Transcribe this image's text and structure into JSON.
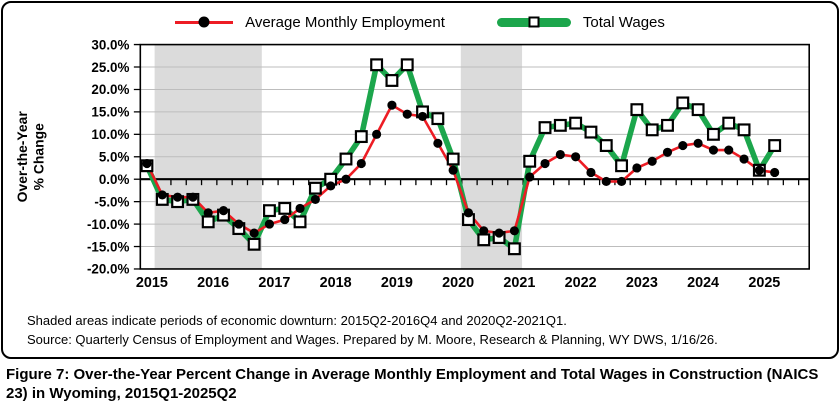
{
  "legend": {
    "employment_label": "Average Monthly Employment",
    "wages_label": "Total Wages"
  },
  "y_axis": {
    "title_line1": "Over-the-Year",
    "title_line2": "% Change",
    "tick_labels": [
      "30.0%",
      "25.0%",
      "20.0%",
      "15.0%",
      "10.0%",
      "5.0%",
      "0.0%",
      "-5.0%",
      "-10.0%",
      "-15.0%",
      "-20.0%"
    ],
    "tick_values": [
      30,
      25,
      20,
      15,
      10,
      5,
      0,
      -5,
      -10,
      -15,
      -20
    ]
  },
  "x_axis": {
    "year_labels": [
      "2015",
      "2016",
      "2017",
      "2018",
      "2019",
      "2020",
      "2021",
      "2022",
      "2023",
      "2024",
      "2025"
    ]
  },
  "notes": {
    "line1": "Shaded areas indicate periods of economic downturn: 2015Q2-2016Q4 and 2020Q2-2021Q1.",
    "line2": "Source: Quarterly Census of Employment and Wages. Prepared by M. Moore, Research & Planning, WY DWS, 1/16/26."
  },
  "caption": "Figure 7: Over-the-Year Percent Change in Average Monthly Employment and Total Wages in Construction (NAICS 23) in Wyoming, 2015Q1-2025Q2",
  "colors": {
    "employment_line": "#ED1C24",
    "employment_marker": "#000000",
    "wages_line": "#1CA64C",
    "wages_marker_fill": "#FFFFFF",
    "wages_marker_border": "#000000",
    "shading": "#DBDBDB",
    "gridline": "#BDBDBD",
    "axis": "#000000"
  },
  "chart_data": {
    "type": "line",
    "title": "",
    "xlabel": "",
    "ylabel": "Over-the-Year % Change",
    "ylim": [
      -20,
      30
    ],
    "ytick_step": 5,
    "grid": true,
    "legend_position": "top",
    "categories": [
      "2015Q1",
      "2015Q2",
      "2015Q3",
      "2015Q4",
      "2016Q1",
      "2016Q2",
      "2016Q3",
      "2016Q4",
      "2017Q1",
      "2017Q2",
      "2017Q3",
      "2017Q4",
      "2018Q1",
      "2018Q2",
      "2018Q3",
      "2018Q4",
      "2019Q1",
      "2019Q2",
      "2019Q3",
      "2019Q4",
      "2020Q1",
      "2020Q2",
      "2020Q3",
      "2020Q4",
      "2021Q1",
      "2021Q2",
      "2021Q3",
      "2021Q4",
      "2022Q1",
      "2022Q2",
      "2022Q3",
      "2022Q4",
      "2023Q1",
      "2023Q2",
      "2023Q3",
      "2023Q4",
      "2024Q1",
      "2024Q2",
      "2024Q3",
      "2024Q4",
      "2025Q1",
      "2025Q2"
    ],
    "series": [
      {
        "name": "Average Monthly Employment",
        "marker": "circle",
        "values": [
          3.5,
          -3.5,
          -4,
          -4,
          -7.5,
          -7,
          -10,
          -12,
          -10,
          -9,
          -6.5,
          -4.5,
          -1.5,
          0,
          3.5,
          10,
          16.5,
          14.5,
          14,
          8,
          2,
          -7.5,
          -11.5,
          -12,
          -11.5,
          0.5,
          3.5,
          5.5,
          5,
          1.5,
          -0.5,
          -0.5,
          2.5,
          4,
          6,
          7.5,
          8,
          6.5,
          6.5,
          4.5,
          2,
          1.5
        ]
      },
      {
        "name": "Total Wages",
        "marker": "square",
        "values": [
          3,
          -4.5,
          -5,
          -4.5,
          -9.5,
          -8,
          -11,
          -14.5,
          -7,
          -6.5,
          -9.5,
          -2,
          0,
          4.5,
          9.5,
          25.5,
          22,
          25.5,
          15,
          13.5,
          4.5,
          -9,
          -13.5,
          -13,
          -15.5,
          4,
          11.5,
          12,
          12.5,
          10.5,
          7.5,
          3,
          15.5,
          11,
          12,
          17,
          15.5,
          10,
          12.5,
          11,
          2,
          7.5
        ]
      }
    ],
    "shaded_regions": [
      {
        "label": "2015Q2-2016Q4",
        "from": "2015Q2",
        "to": "2016Q4",
        "from_index": 1,
        "to_index": 7
      },
      {
        "label": "2020Q2-2021Q1",
        "from": "2020Q2",
        "to": "2021Q1",
        "from_index": 21,
        "to_index": 24
      }
    ]
  }
}
